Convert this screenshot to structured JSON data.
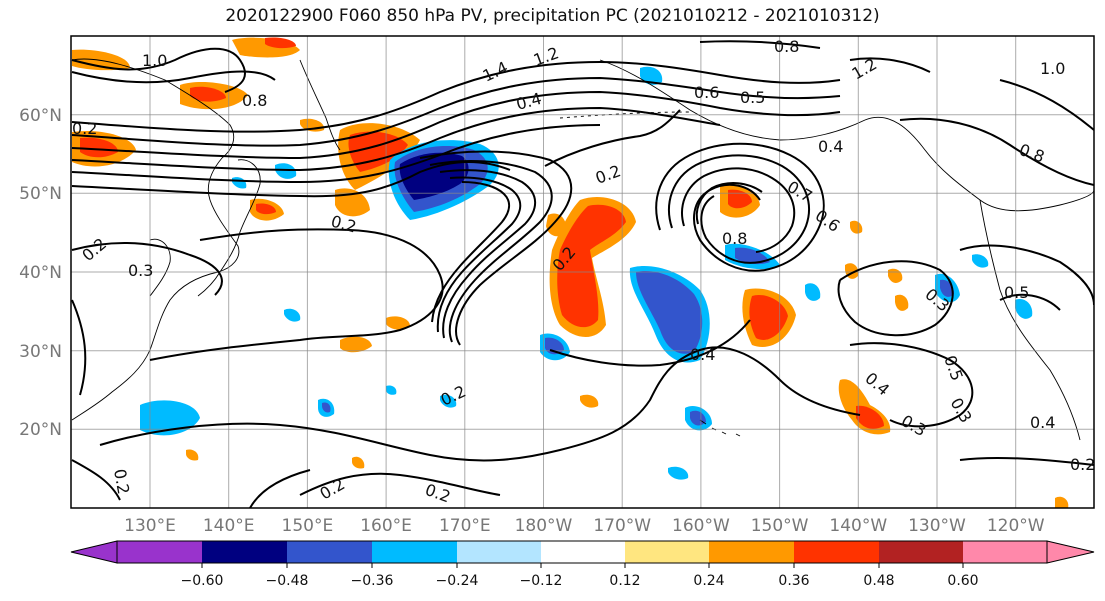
{
  "title": "2020122900 F060 850 hPa PV, precipitation PC (2021010212 - 2021010312)",
  "map": {
    "lat_ticks": [
      "20°N",
      "30°N",
      "40°N",
      "50°N",
      "60°N"
    ],
    "lon_ticks": [
      "130°E",
      "140°E",
      "150°E",
      "160°E",
      "170°E",
      "180°W",
      "170°W",
      "160°W",
      "150°W",
      "140°W",
      "130°W",
      "120°W"
    ],
    "contour_labels": [
      "1.0",
      "1.4",
      "1.2",
      "0.8",
      "0.8",
      "0.4",
      "0.6",
      "0.5",
      "1.2",
      "1.0",
      "0.2",
      "0.4",
      "0.7",
      "0.6",
      "0.8",
      "0.8",
      "0.2",
      "0.3",
      "0.2",
      "0.2",
      "0.5",
      "0.4",
      "0.3",
      "0.5",
      "0.4",
      "0.3",
      "0.4",
      "0.2",
      "0.2",
      "0.2",
      "0.2",
      "0.3",
      "0.2",
      "0.2"
    ]
  },
  "colorbar": {
    "levels": [
      "−0.60",
      "−0.48",
      "−0.36",
      "−0.24",
      "−0.12",
      "0.12",
      "0.24",
      "0.36",
      "0.48",
      "0.60"
    ],
    "colors": [
      "#9933cc",
      "#000080",
      "#3355cc",
      "#00bbff",
      "#b3e5ff",
      "#ffffff",
      "#ffe680",
      "#ff9900",
      "#ff3300",
      "#b22222",
      "#ff88aa"
    ]
  }
}
